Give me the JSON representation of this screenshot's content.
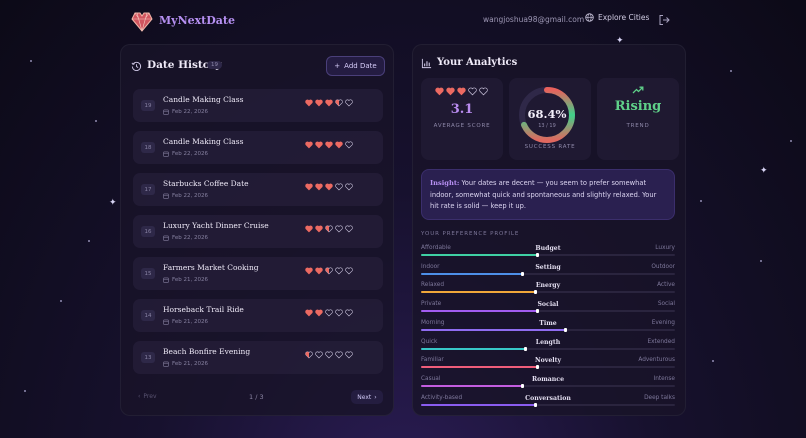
{
  "header": {
    "brand": "MyNextDate",
    "email": "wangjoshua98@gmail.com",
    "explore_label": "Explore Cities"
  },
  "history": {
    "title": "Date History",
    "count": "19",
    "add_label": "Add Date",
    "items": [
      {
        "num": "19",
        "name": "Candle Making Class",
        "date": "Feb 22, 2026",
        "rating": 3.5
      },
      {
        "num": "18",
        "name": "Candle Making Class",
        "date": "Feb 22, 2026",
        "rating": 4
      },
      {
        "num": "17",
        "name": "Starbucks Coffee Date",
        "date": "Feb 22, 2026",
        "rating": 3
      },
      {
        "num": "16",
        "name": "Luxury Yacht Dinner Cruise",
        "date": "Feb 22, 2026",
        "rating": 2.5
      },
      {
        "num": "15",
        "name": "Farmers Market Cooking",
        "date": "Feb 21, 2026",
        "rating": 2.5
      },
      {
        "num": "14",
        "name": "Horseback Trail Ride",
        "date": "Feb 21, 2026",
        "rating": 2
      },
      {
        "num": "13",
        "name": "Beach Bonfire Evening",
        "date": "Feb 21, 2026",
        "rating": 0.5
      }
    ],
    "pager": {
      "prev_label": "Prev",
      "info": "1 / 3",
      "next_label": "Next"
    }
  },
  "analytics": {
    "title": "Your Analytics",
    "average": {
      "value": "3.1",
      "label": "AVERAGE SCORE",
      "rating": 3
    },
    "success": {
      "value": "68.4%",
      "sub": "13 / 19",
      "label": "SUCCESS RATE",
      "fraction": 0.684
    },
    "trend": {
      "value": "Rising",
      "label": "TREND"
    },
    "insight": {
      "label": "Insight:",
      "text": "Your dates are decent — you seem to prefer somewhat indoor, somewhat quick and spontaneous and slightly relaxed. Your hit rate is solid — keep it up."
    },
    "preferences_title": "YOUR PREFERENCE PROFILE",
    "preferences": [
      {
        "left": "Affordable",
        "center": "Budget",
        "right": "Luxury",
        "value": 0.46,
        "color": "#3fd0a4"
      },
      {
        "left": "Indoor",
        "center": "Setting",
        "right": "Outdoor",
        "value": 0.4,
        "color": "#4d8fe8"
      },
      {
        "left": "Relaxed",
        "center": "Energy",
        "right": "Active",
        "value": 0.45,
        "color": "#f0a73a"
      },
      {
        "left": "Private",
        "center": "Social",
        "right": "Social",
        "value": 0.46,
        "color": "#a25cf0"
      },
      {
        "left": "Morning",
        "center": "Time",
        "right": "Evening",
        "value": 0.57,
        "color": "#8f6cf0"
      },
      {
        "left": "Quick",
        "center": "Length",
        "right": "Extended",
        "value": 0.41,
        "color": "#38c8c8"
      },
      {
        "left": "Familiar",
        "center": "Novelty",
        "right": "Adventurous",
        "value": 0.46,
        "color": "#ef5d7a"
      },
      {
        "left": "Casual",
        "center": "Romance",
        "right": "Intense",
        "value": 0.4,
        "color": "#c35de0"
      },
      {
        "left": "Activity-based",
        "center": "Conversation",
        "right": "Deep talks",
        "value": 0.45,
        "color": "#8a5cf0"
      }
    ]
  },
  "colors": {
    "heart_filled": "#ec6a62",
    "heart_empty": "#cfc8e0",
    "accent": "#b98cf0",
    "trend": "#5fd089"
  }
}
